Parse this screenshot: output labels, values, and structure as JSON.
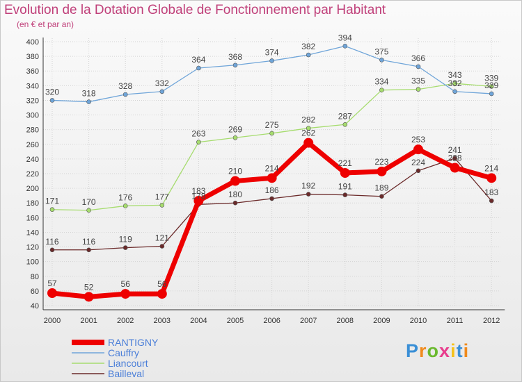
{
  "chart_data": {
    "type": "line",
    "title": "Evolution de la Dotation Globale de Fonctionnement par Habitant",
    "subtitle": "(en € et par an)",
    "xlabel": "",
    "ylabel": "",
    "ylim": [
      40,
      400
    ],
    "yticks": [
      40,
      60,
      80,
      100,
      120,
      140,
      160,
      180,
      200,
      220,
      240,
      260,
      280,
      300,
      320,
      340,
      360,
      380,
      400
    ],
    "grid": true,
    "legend_position": "bottom-left",
    "categories": [
      "2000",
      "2001",
      "2002",
      "2003",
      "2004",
      "2005",
      "2006",
      "2007",
      "2008",
      "2009",
      "2010",
      "2011",
      "2012"
    ],
    "series": [
      {
        "name": "Bailleval",
        "color": "#6b2a2a",
        "values": [
          116,
          116,
          119,
          121,
          178,
          180,
          186,
          192,
          191,
          189,
          224,
          241,
          183
        ]
      },
      {
        "name": "Liancourt",
        "color": "#a6dc6e",
        "values": [
          171,
          170,
          176,
          177,
          263,
          269,
          275,
          282,
          287,
          334,
          335,
          343,
          339
        ]
      },
      {
        "name": "Cauffry",
        "color": "#6fa5d9",
        "values": [
          320,
          318,
          328,
          332,
          364,
          368,
          374,
          382,
          394,
          375,
          366,
          332,
          329
        ]
      },
      {
        "name": "RANTIGNY",
        "color": "#ee0000",
        "values": [
          57,
          52,
          56,
          56,
          183,
          210,
          214,
          262,
          221,
          223,
          253,
          228,
          214
        ]
      }
    ],
    "legend": [
      "RANTIGNY",
      "Cauffry",
      "Liancourt",
      "Bailleval"
    ]
  },
  "logo": {
    "letters": [
      "P",
      "r",
      "o",
      "x",
      "i",
      "t",
      "i"
    ],
    "colors": [
      "#3a8fd6",
      "#f08a1c",
      "#6ab92e",
      "#e83c8c",
      "#f5c21b",
      "#3a8fd6",
      "#f08a1c"
    ]
  }
}
